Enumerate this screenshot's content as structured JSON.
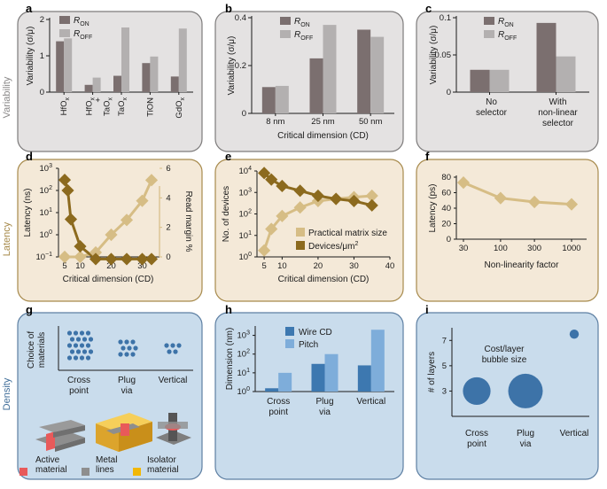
{
  "colors": {
    "gray_bg": "#e4e2e2",
    "gray_border": "#7d7b7b",
    "tan_bg": "#f4e9d8",
    "tan_border": "#a78a4c",
    "blue_bg": "#c9dcec",
    "blue_border": "#5d7fa2",
    "ron": "#7b6f6f",
    "roff": "#b3b0b0",
    "dark_gold": "#8c6a1e",
    "light_gold": "#d6bd85",
    "pitch": "#7eadda",
    "wire": "#3d78b0",
    "dot": "#3d73a8",
    "row_variability": "#8a8888",
    "row_latency": "#a58847",
    "row_density": "#3f6d99"
  },
  "row_labels": {
    "variability": "Variability",
    "latency": "Latency",
    "density": "Density"
  },
  "panels": {
    "a": {
      "letter": "a"
    },
    "b": {
      "letter": "b"
    },
    "c": {
      "letter": "c"
    },
    "d": {
      "letter": "d"
    },
    "e": {
      "letter": "e"
    },
    "f": {
      "letter": "f"
    },
    "g": {
      "letter": "g"
    },
    "h": {
      "letter": "h"
    },
    "i": {
      "letter": "i"
    }
  },
  "legend_schematic": {
    "active": "Active material",
    "metal": "Metal lines",
    "isolator": "Isolator material"
  },
  "chart_data": [
    {
      "id": "a",
      "type": "bar",
      "title": "",
      "xlabel": "",
      "ylabel": "Variability (σ/μ)",
      "ylim": [
        0,
        2
      ],
      "yticks": [
        "0",
        "1",
        "2"
      ],
      "categories": [
        "HfOx",
        "HfOx + TaOx",
        "TaOx",
        "TiON",
        "GdOx"
      ],
      "series": [
        {
          "name": "RON",
          "values": [
            1.4,
            0.2,
            0.45,
            0.8,
            0.43
          ]
        },
        {
          "name": "ROFF",
          "values": [
            1.48,
            0.4,
            1.78,
            0.98,
            1.75
          ]
        }
      ]
    },
    {
      "id": "b",
      "type": "bar",
      "title": "",
      "xlabel": "Critical dimension (CD)",
      "ylabel": "Variability (σ/μ)",
      "ylim": [
        0,
        0.4
      ],
      "yticks": [
        "0",
        "0.2",
        "0.4"
      ],
      "categories": [
        "8 nm",
        "25 nm",
        "50 nm"
      ],
      "series": [
        {
          "name": "RON",
          "values": [
            0.11,
            0.23,
            0.35
          ]
        },
        {
          "name": "ROFF",
          "values": [
            0.115,
            0.37,
            0.32
          ]
        }
      ]
    },
    {
      "id": "c",
      "type": "bar",
      "title": "",
      "xlabel": "",
      "ylabel": "Variability (σ/μ)",
      "ylim": [
        0,
        0.1
      ],
      "yticks": [
        "0",
        "0.05",
        "0.1"
      ],
      "categories": [
        "No selector",
        "With non-linear selector"
      ],
      "series": [
        {
          "name": "RON",
          "values": [
            0.03,
            0.093
          ]
        },
        {
          "name": "ROFF",
          "values": [
            0.03,
            0.048
          ]
        }
      ]
    },
    {
      "id": "d",
      "type": "line",
      "title": "",
      "xlabel": "Critical dimension (CD)",
      "ylabel": "Latency (ns)",
      "ylabel_right": "Read margin %",
      "xlim": [
        3,
        35
      ],
      "xticks": [
        "5",
        "10",
        "20",
        "30"
      ],
      "ylim_log": [
        -1,
        3
      ],
      "yticks": [
        "10^-1",
        "10^0",
        "10^1",
        "10^2",
        "10^3"
      ],
      "ylim_right": [
        0,
        6
      ],
      "yticks_right": [
        "0",
        "2",
        "4",
        "6"
      ],
      "series": [
        {
          "name": "Latency",
          "axis": "left",
          "x": [
            5,
            6,
            7,
            10,
            15,
            20,
            25,
            30,
            33
          ],
          "y": [
            300,
            100,
            5,
            0.3,
            0.08,
            0.08,
            0.08,
            0.08,
            0.08
          ]
        },
        {
          "name": "Read margin",
          "axis": "right",
          "x": [
            5,
            10,
            15,
            20,
            25,
            30,
            33
          ],
          "y": [
            0,
            0,
            0.3,
            1.5,
            2.5,
            3.8,
            5.2
          ]
        }
      ]
    },
    {
      "id": "e",
      "type": "line",
      "title": "",
      "xlabel": "Critical dimension (CD)",
      "ylabel": "No. of devices",
      "xlim": [
        3,
        40
      ],
      "xticks": [
        "5",
        "10",
        "20",
        "30",
        "40"
      ],
      "ylim_log": [
        0,
        4
      ],
      "yticks": [
        "10^0",
        "10^1",
        "10^2",
        "10^3",
        "10^4"
      ],
      "legend": [
        "Practical matrix size",
        "Devices/μm²"
      ],
      "series": [
        {
          "name": "Practical matrix size",
          "x": [
            5,
            7,
            10,
            15,
            20,
            25,
            30,
            35
          ],
          "y": [
            2,
            20,
            80,
            200,
            400,
            500,
            600,
            700
          ]
        },
        {
          "name": "Devices/μm²",
          "x": [
            5,
            7,
            10,
            15,
            20,
            25,
            30,
            35
          ],
          "y": [
            8000,
            4000,
            2000,
            1200,
            700,
            500,
            400,
            250
          ]
        }
      ]
    },
    {
      "id": "f",
      "type": "line",
      "title": "",
      "xlabel": "Non-linearity factor",
      "ylabel": "Latency (ps)",
      "xticks": [
        "30",
        "100",
        "300",
        "1000"
      ],
      "ylim": [
        0,
        80
      ],
      "yticks": [
        "0",
        "20",
        "40",
        "60",
        "80"
      ],
      "series": [
        {
          "name": "Latency",
          "x": [
            30,
            100,
            300,
            1000
          ],
          "y": [
            73,
            53,
            48,
            45
          ]
        }
      ]
    },
    {
      "id": "g",
      "type": "scatter",
      "title": "",
      "xlabel": "",
      "ylabel": "Choice of materials",
      "categories": [
        "Cross point",
        "Plug via",
        "Vertical"
      ],
      "series": [
        {
          "name": "Materials",
          "values": [
            20,
            9,
            5
          ]
        }
      ]
    },
    {
      "id": "h",
      "type": "bar",
      "title": "",
      "xlabel": "",
      "ylabel": "Dimension (nm)",
      "ylim_log": [
        0,
        3.5
      ],
      "yticks": [
        "10^0",
        "10^1",
        "10^2",
        "10^3"
      ],
      "categories": [
        "Cross point",
        "Plug via",
        "Vertical"
      ],
      "series": [
        {
          "name": "Wire CD",
          "values": [
            1.5,
            30,
            25
          ]
        },
        {
          "name": "Pitch",
          "values": [
            10,
            100,
            2000
          ]
        }
      ]
    },
    {
      "id": "i",
      "type": "scatter",
      "title": "",
      "xlabel": "",
      "ylabel": "# of layers",
      "ylim": [
        1,
        8
      ],
      "yticks": [
        "3",
        "5",
        "7"
      ],
      "annotation": "Cost/layer bubble size",
      "categories": [
        "Cross point",
        "Plug via",
        "Vertical"
      ],
      "series": [
        {
          "name": "Layers",
          "values": [
            3,
            3,
            7.5
          ],
          "sizes": [
            1.2,
            1.5,
            0.4
          ]
        }
      ]
    }
  ]
}
